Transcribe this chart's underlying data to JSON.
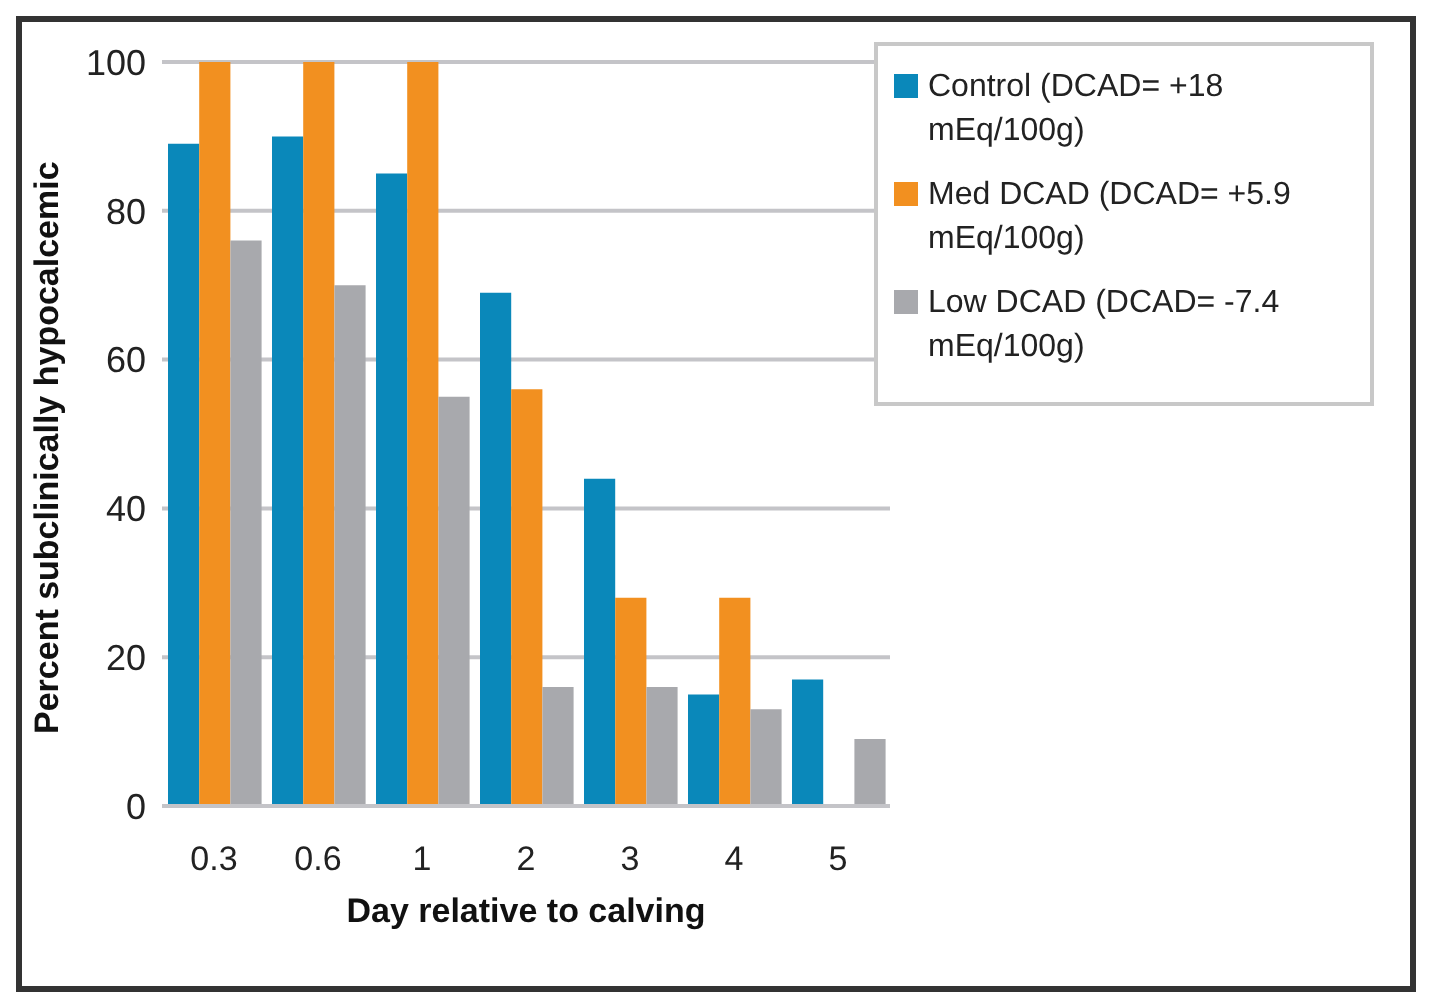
{
  "chart_data": {
    "type": "bar",
    "xlabel": "Day relative to calving",
    "ylabel": "Percent subclinically hypocalcemic",
    "categories": [
      "0.3",
      "0.6",
      "1",
      "2",
      "3",
      "4",
      "5"
    ],
    "series": [
      {
        "name": "Control (DCAD= +18 mEq/100g)",
        "color": "#0a88ba",
        "values": [
          89,
          90,
          85,
          69,
          44,
          15,
          17
        ]
      },
      {
        "name": "Med DCAD (DCAD= +5.9 mEq/100g)",
        "color": "#f29020",
        "values": [
          100,
          100,
          100,
          56,
          28,
          28,
          null
        ]
      },
      {
        "name": "Low DCAD (DCAD= -7.4 mEq/100g)",
        "color": "#a8a9ad",
        "values": [
          76,
          70,
          55,
          16,
          16,
          13,
          9
        ]
      }
    ],
    "ylim": [
      0,
      100
    ],
    "yticks": [
      0,
      20,
      40,
      60,
      80,
      100
    ],
    "grid": "y",
    "legend": "top right"
  }
}
